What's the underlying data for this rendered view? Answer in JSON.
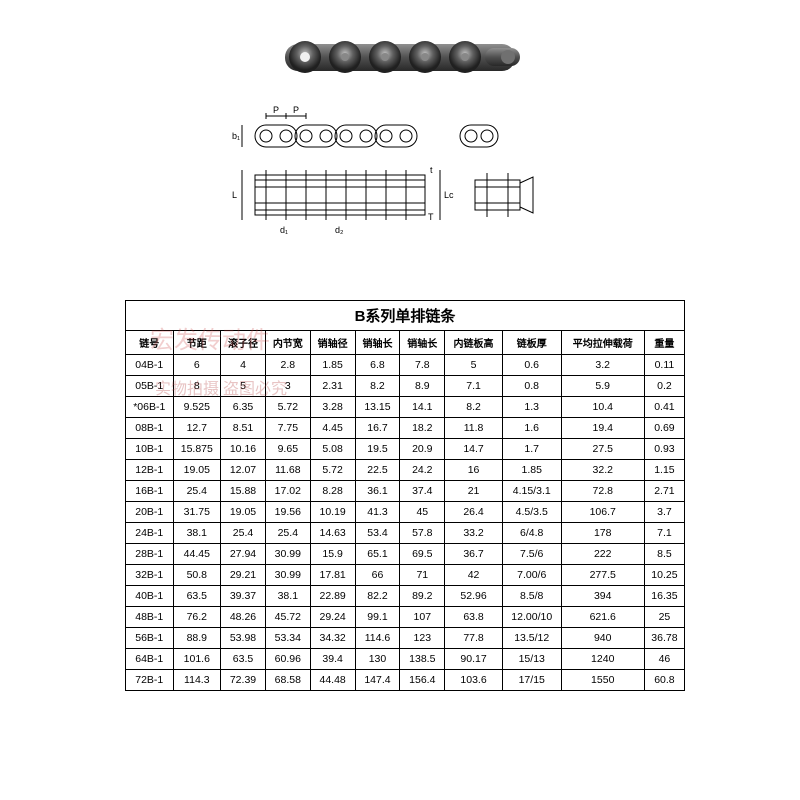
{
  "title": "B系列单排链条",
  "columns": [
    "链号",
    "节距",
    "滚子径",
    "内节宽",
    "销轴径",
    "销轴长",
    "销轴长",
    "内链板高",
    "链板厚",
    "平均拉伸载荷",
    "重量"
  ],
  "rows": [
    [
      "04B-1",
      "6",
      "4",
      "2.8",
      "1.85",
      "6.8",
      "7.8",
      "5",
      "0.6",
      "3.2",
      "0.11"
    ],
    [
      "05B-1",
      "8",
      "5",
      "3",
      "2.31",
      "8.2",
      "8.9",
      "7.1",
      "0.8",
      "5.9",
      "0.2"
    ],
    [
      "*06B-1",
      "9.525",
      "6.35",
      "5.72",
      "3.28",
      "13.15",
      "14.1",
      "8.2",
      "1.3",
      "10.4",
      "0.41"
    ],
    [
      "08B-1",
      "12.7",
      "8.51",
      "7.75",
      "4.45",
      "16.7",
      "18.2",
      "11.8",
      "1.6",
      "19.4",
      "0.69"
    ],
    [
      "10B-1",
      "15.875",
      "10.16",
      "9.65",
      "5.08",
      "19.5",
      "20.9",
      "14.7",
      "1.7",
      "27.5",
      "0.93"
    ],
    [
      "12B-1",
      "19.05",
      "12.07",
      "11.68",
      "5.72",
      "22.5",
      "24.2",
      "16",
      "1.85",
      "32.2",
      "1.15"
    ],
    [
      "16B-1",
      "25.4",
      "15.88",
      "17.02",
      "8.28",
      "36.1",
      "37.4",
      "21",
      "4.15/3.1",
      "72.8",
      "2.71"
    ],
    [
      "20B-1",
      "31.75",
      "19.05",
      "19.56",
      "10.19",
      "41.3",
      "45",
      "26.4",
      "4.5/3.5",
      "106.7",
      "3.7"
    ],
    [
      "24B-1",
      "38.1",
      "25.4",
      "25.4",
      "14.63",
      "53.4",
      "57.8",
      "33.2",
      "6/4.8",
      "178",
      "7.1"
    ],
    [
      "28B-1",
      "44.45",
      "27.94",
      "30.99",
      "15.9",
      "65.1",
      "69.5",
      "36.7",
      "7.5/6",
      "222",
      "8.5"
    ],
    [
      "32B-1",
      "50.8",
      "29.21",
      "30.99",
      "17.81",
      "66",
      "71",
      "42",
      "7.00/6",
      "277.5",
      "10.25"
    ],
    [
      "40B-1",
      "63.5",
      "39.37",
      "38.1",
      "22.89",
      "82.2",
      "89.2",
      "52.96",
      "8.5/8",
      "394",
      "16.35"
    ],
    [
      "48B-1",
      "76.2",
      "48.26",
      "45.72",
      "29.24",
      "99.1",
      "107",
      "63.8",
      "12.00/10",
      "621.6",
      "25"
    ],
    [
      "56B-1",
      "88.9",
      "53.98",
      "53.34",
      "34.32",
      "114.6",
      "123",
      "77.8",
      "13.5/12",
      "940",
      "36.78"
    ],
    [
      "64B-1",
      "101.6",
      "63.5",
      "60.96",
      "39.4",
      "130",
      "138.5",
      "90.17",
      "15/13",
      "1240",
      "46"
    ],
    [
      "72B-1",
      "114.3",
      "72.39",
      "68.58",
      "44.48",
      "147.4",
      "156.4",
      "103.6",
      "17/15",
      "1550",
      "60.8"
    ]
  ],
  "watermark1": "宏发传动件",
  "watermark2": "实物拍摄  盗图必究",
  "diagram_labels": {
    "p": "P",
    "b": "b₁",
    "d1": "d₁",
    "d2": "d₂",
    "L": "L",
    "Lc": "Lc",
    "t": "t",
    "T": "T"
  },
  "styling": {
    "border_color": "#000000",
    "background_color": "#ffffff",
    "title_fontsize": 15,
    "header_fontsize": 10,
    "cell_fontsize": 10.5,
    "watermark_color": "rgba(200,60,60,0.25)"
  }
}
